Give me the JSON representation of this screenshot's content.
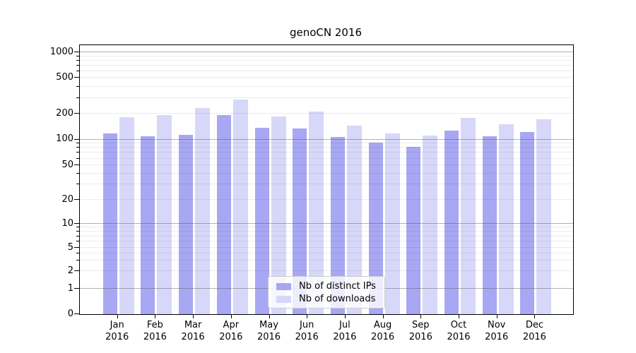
{
  "chart_data": {
    "type": "bar",
    "title": "genoCN 2016",
    "year_label": "2016",
    "categories": [
      "Jan",
      "Feb",
      "Mar",
      "Apr",
      "May",
      "Jun",
      "Jul",
      "Aug",
      "Sep",
      "Oct",
      "Nov",
      "Dec"
    ],
    "series": [
      {
        "name": "Nb of distinct IPs",
        "color": "#a7a7f3",
        "values": [
          119,
          110,
          113,
          192,
          136,
          135,
          108,
          93,
          82,
          128,
          110,
          123
        ]
      },
      {
        "name": "Nb of downloads",
        "color": "#d7d7f9",
        "values": [
          183,
          194,
          230,
          288,
          187,
          210,
          146,
          118,
          111,
          178,
          150,
          173
        ]
      }
    ],
    "yscale": "symlog",
    "y_ticks": [
      0,
      1,
      2,
      5,
      10,
      20,
      50,
      100,
      200,
      500,
      1000
    ],
    "ylim": [
      0,
      1000
    ],
    "grid": true,
    "legend_position": "lower center",
    "colors": {
      "axis": "#000000",
      "major_grid": "#8c8c8c",
      "minor_grid": "#e8e8e8",
      "legend_border": "#cccccc"
    }
  }
}
